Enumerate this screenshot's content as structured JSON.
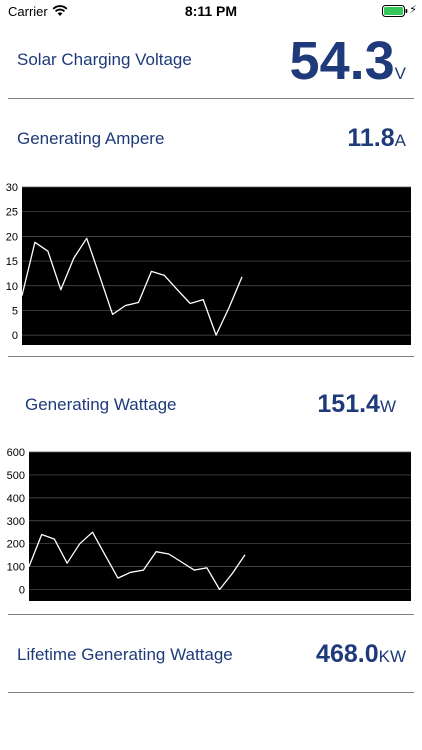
{
  "status_bar": {
    "carrier": "Carrier",
    "time": "8:11 PM",
    "battery_color": "#35c759"
  },
  "rows": {
    "voltage": {
      "label": "Solar Charging Voltage",
      "value": "54.3",
      "unit": "V"
    },
    "ampere": {
      "label": "Generating Ampere",
      "value": "11.8",
      "unit": "A"
    },
    "wattage": {
      "label": "Generating Wattage",
      "value": "151.4",
      "unit": "W"
    },
    "lifetime": {
      "label": "Lifetime Generating Wattage",
      "value": "468.0",
      "unit": "KW"
    }
  },
  "colors": {
    "text": "#1f3a7a",
    "chart_bg": "#000000",
    "chart_line": "#ffffff",
    "grid": "#555555"
  },
  "chart_data": [
    {
      "type": "line",
      "ylim": [
        -2,
        30
      ],
      "yticks": [
        0,
        5,
        10,
        15,
        20,
        25,
        30
      ],
      "grid": true,
      "series": [
        {
          "values": [
            8,
            18.8,
            17,
            9.2,
            15.6,
            19.6,
            12,
            4.2,
            6,
            6.6,
            12.9,
            12.1,
            9.2,
            6.4,
            7.2,
            0,
            5.6,
            11.8
          ]
        }
      ]
    },
    {
      "type": "line",
      "ylim": [
        -50,
        600
      ],
      "yticks": [
        0,
        100,
        200,
        300,
        400,
        500,
        600
      ],
      "grid": true,
      "series": [
        {
          "values": [
            100,
            240,
            220,
            115,
            200,
            250,
            150,
            50,
            75,
            85,
            165,
            155,
            120,
            85,
            95,
            0,
            70,
            151.4
          ]
        }
      ]
    }
  ]
}
